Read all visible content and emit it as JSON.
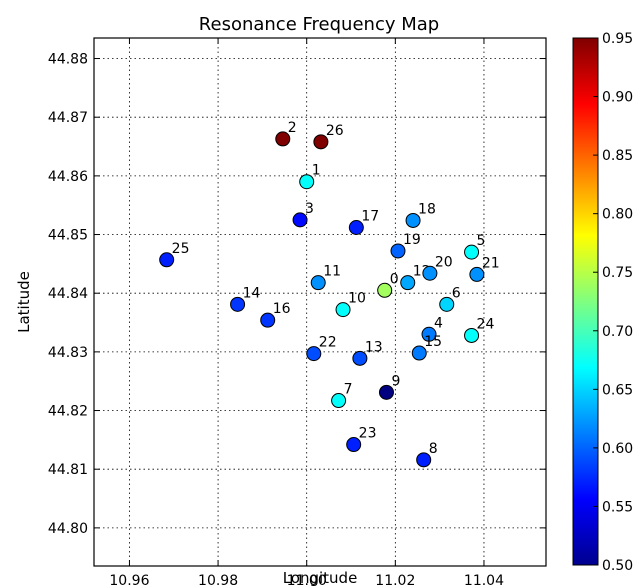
{
  "chart_data": {
    "type": "scatter",
    "title": "Resonance Frequency Map",
    "xlabel": "Longitude",
    "ylabel": "Latitude",
    "xlim": [
      10.952,
      11.054
    ],
    "ylim": [
      44.7935,
      44.8835
    ],
    "xticks": [
      10.96,
      10.98,
      11.0,
      11.02,
      11.04
    ],
    "xtick_labels": [
      "10.96",
      "10.98",
      "11.00",
      "11.02",
      "11.04"
    ],
    "yticks": [
      44.8,
      44.81,
      44.82,
      44.83,
      44.84,
      44.85,
      44.86,
      44.87,
      44.88
    ],
    "ytick_labels": [
      "44.80",
      "44.81",
      "44.82",
      "44.83",
      "44.84",
      "44.85",
      "44.86",
      "44.87",
      "44.88"
    ],
    "grid": true,
    "colorbar": {
      "colormap": "jet",
      "range": [
        0.5,
        0.95
      ],
      "ticks": [
        0.5,
        0.55,
        0.6,
        0.65,
        0.7,
        0.75,
        0.8,
        0.85,
        0.9,
        0.95
      ],
      "tick_labels": [
        "0.50",
        "0.55",
        "0.60",
        "0.65",
        "0.70",
        "0.75",
        "0.80",
        "0.85",
        "0.90",
        "0.95"
      ]
    },
    "points": [
      {
        "label": "0",
        "x": 11.0176,
        "y": 44.8405,
        "value": 0.74
      },
      {
        "label": "1",
        "x": 11.0,
        "y": 44.859,
        "value": 0.67
      },
      {
        "label": "2",
        "x": 10.9946,
        "y": 44.8663,
        "value": 0.95
      },
      {
        "label": "26",
        "x": 11.0032,
        "y": 44.8658,
        "value": 0.95
      },
      {
        "label": "3",
        "x": 10.9985,
        "y": 44.8525,
        "value": 0.56
      },
      {
        "label": "17",
        "x": 11.0112,
        "y": 44.8512,
        "value": 0.57
      },
      {
        "label": "18",
        "x": 11.024,
        "y": 44.8524,
        "value": 0.62
      },
      {
        "label": "19",
        "x": 11.0206,
        "y": 44.8472,
        "value": 0.6
      },
      {
        "label": "5",
        "x": 11.0372,
        "y": 44.847,
        "value": 0.67
      },
      {
        "label": "21",
        "x": 11.0384,
        "y": 44.8432,
        "value": 0.62
      },
      {
        "label": "12",
        "x": 11.0228,
        "y": 44.8418,
        "value": 0.63
      },
      {
        "label": "20",
        "x": 11.0278,
        "y": 44.8434,
        "value": 0.62
      },
      {
        "label": "25",
        "x": 10.9684,
        "y": 44.8457,
        "value": 0.57
      },
      {
        "label": "11",
        "x": 11.0026,
        "y": 44.8418,
        "value": 0.62
      },
      {
        "label": "6",
        "x": 11.0316,
        "y": 44.8381,
        "value": 0.65
      },
      {
        "label": "10",
        "x": 11.0082,
        "y": 44.8372,
        "value": 0.67
      },
      {
        "label": "14",
        "x": 10.9844,
        "y": 44.8381,
        "value": 0.58
      },
      {
        "label": "16",
        "x": 10.9912,
        "y": 44.8354,
        "value": 0.58
      },
      {
        "label": "4",
        "x": 11.0276,
        "y": 44.833,
        "value": 0.61
      },
      {
        "label": "24",
        "x": 11.0372,
        "y": 44.8328,
        "value": 0.67
      },
      {
        "label": "15",
        "x": 11.0254,
        "y": 44.8298,
        "value": 0.61
      },
      {
        "label": "22",
        "x": 11.0016,
        "y": 44.8297,
        "value": 0.59
      },
      {
        "label": "13",
        "x": 11.012,
        "y": 44.8289,
        "value": 0.59
      },
      {
        "label": "9",
        "x": 11.018,
        "y": 44.8231,
        "value": 0.5
      },
      {
        "label": "7",
        "x": 11.0072,
        "y": 44.8217,
        "value": 0.67
      },
      {
        "label": "23",
        "x": 11.0106,
        "y": 44.8142,
        "value": 0.57
      },
      {
        "label": "8",
        "x": 11.0264,
        "y": 44.8116,
        "value": 0.57
      }
    ]
  }
}
